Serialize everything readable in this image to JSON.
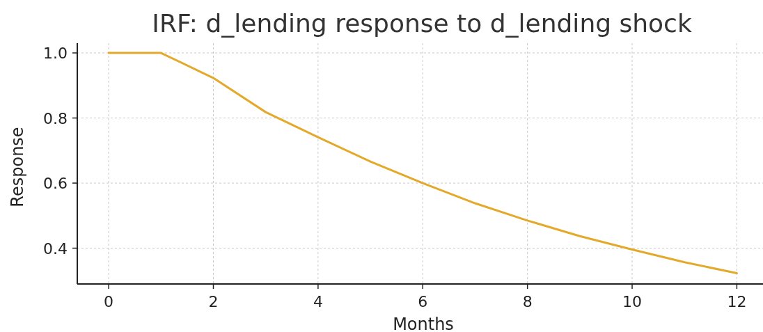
{
  "chart_data": {
    "type": "line",
    "title": "IRF: d_lending response to d_lending shock",
    "xlabel": "Months",
    "ylabel": "Response",
    "x": [
      0,
      1,
      2,
      3,
      4,
      5,
      6,
      7,
      8,
      9,
      10,
      11,
      12
    ],
    "series": [
      {
        "color": "#e3a92a",
        "values": [
          1.0,
          1.0,
          0.923,
          0.818,
          0.741,
          0.666,
          0.6,
          0.538,
          0.485,
          0.437,
          0.396,
          0.357,
          0.323
        ]
      }
    ],
    "xlim": [
      -0.6,
      12.5
    ],
    "ylim": [
      0.29,
      1.03
    ],
    "xticks": [
      0,
      2,
      4,
      6,
      8,
      10,
      12
    ],
    "yticks": [
      {
        "value": 0.4,
        "label": "0.4"
      },
      {
        "value": 0.6,
        "label": "0.6"
      },
      {
        "value": 0.8,
        "label": "0.8"
      },
      {
        "value": 1.0,
        "label": "1.0"
      }
    ],
    "grid": true,
    "line_style": "solid",
    "marker": "none"
  }
}
